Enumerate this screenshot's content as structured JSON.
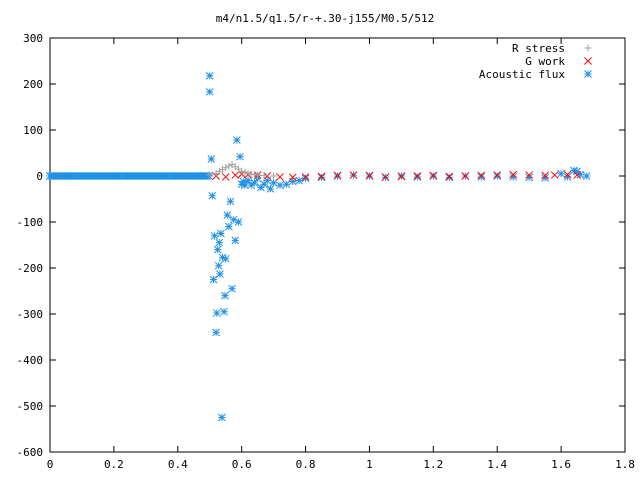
{
  "chart_data": {
    "type": "scatter",
    "title": "m4/n1.5/q1.5/r-+.30-j155/M0.5/512",
    "xlabel": "",
    "ylabel": "",
    "xlim": [
      0,
      1.8
    ],
    "ylim": [
      -600,
      300
    ],
    "xticks": [
      "0",
      "0.2",
      "0.4",
      "0.6",
      "0.8",
      "1",
      "1.2",
      "1.4",
      "1.6",
      "1.8"
    ],
    "yticks": [
      "300",
      "200",
      "100",
      "0",
      "-100",
      "-200",
      "-300",
      "-400",
      "-500",
      "-600"
    ],
    "grid": false,
    "legend_position": "top-right",
    "series": [
      {
        "name": "R stress",
        "marker": "plus",
        "color": "#a0a0a0",
        "points": [
          [
            0.5,
            2
          ],
          [
            0.52,
            5
          ],
          [
            0.53,
            10
          ],
          [
            0.54,
            14
          ],
          [
            0.55,
            18
          ],
          [
            0.56,
            22
          ],
          [
            0.57,
            25
          ],
          [
            0.58,
            20
          ],
          [
            0.59,
            15
          ],
          [
            0.6,
            10
          ],
          [
            0.61,
            8
          ],
          [
            0.62,
            6
          ],
          [
            0.63,
            4
          ],
          [
            0.64,
            3
          ],
          [
            0.65,
            2
          ],
          [
            0.67,
            1
          ],
          [
            0.7,
            0
          ]
        ]
      },
      {
        "name": "G work",
        "marker": "cross",
        "color": "#ff0000",
        "points": [
          [
            0.52,
            0
          ],
          [
            0.55,
            -2
          ],
          [
            0.58,
            2
          ],
          [
            0.6,
            4
          ],
          [
            0.62,
            3
          ],
          [
            0.65,
            2
          ],
          [
            0.68,
            0
          ],
          [
            0.72,
            -2
          ],
          [
            0.76,
            -3
          ],
          [
            0.8,
            -2
          ],
          [
            0.85,
            -1
          ],
          [
            0.9,
            1
          ],
          [
            0.95,
            2
          ],
          [
            1.0,
            1
          ],
          [
            1.05,
            -2
          ],
          [
            1.1,
            -1
          ],
          [
            1.15,
            0
          ],
          [
            1.2,
            1
          ],
          [
            1.25,
            -1
          ],
          [
            1.3,
            0
          ],
          [
            1.35,
            1
          ],
          [
            1.4,
            2
          ],
          [
            1.45,
            3
          ],
          [
            1.5,
            2
          ],
          [
            1.55,
            1
          ],
          [
            1.58,
            2
          ],
          [
            1.62,
            3
          ],
          [
            1.65,
            2
          ]
        ]
      },
      {
        "name": "Acoustic flux",
        "marker": "star",
        "color": "#1e90e8",
        "points": [
          [
            0.0,
            0
          ],
          [
            0.05,
            0
          ],
          [
            0.1,
            0
          ],
          [
            0.15,
            0
          ],
          [
            0.2,
            0
          ],
          [
            0.25,
            0
          ],
          [
            0.3,
            0
          ],
          [
            0.35,
            0
          ],
          [
            0.4,
            0
          ],
          [
            0.45,
            0
          ],
          [
            0.48,
            0
          ],
          [
            0.5,
            218
          ],
          [
            0.5,
            183
          ],
          [
            0.505,
            37
          ],
          [
            0.508,
            -43
          ],
          [
            0.512,
            -225
          ],
          [
            0.515,
            -130
          ],
          [
            0.52,
            -340
          ],
          [
            0.522,
            -298
          ],
          [
            0.525,
            -160
          ],
          [
            0.528,
            -195
          ],
          [
            0.53,
            -145
          ],
          [
            0.532,
            -213
          ],
          [
            0.535,
            -125
          ],
          [
            0.538,
            -525
          ],
          [
            0.54,
            -177
          ],
          [
            0.545,
            -295
          ],
          [
            0.548,
            -260
          ],
          [
            0.55,
            -180
          ],
          [
            0.555,
            -85
          ],
          [
            0.56,
            -110
          ],
          [
            0.565,
            -55
          ],
          [
            0.57,
            -245
          ],
          [
            0.575,
            -95
          ],
          [
            0.58,
            -140
          ],
          [
            0.585,
            78
          ],
          [
            0.59,
            -100
          ],
          [
            0.595,
            42
          ],
          [
            0.6,
            -18
          ],
          [
            0.605,
            -12
          ],
          [
            0.61,
            -20
          ],
          [
            0.62,
            -10
          ],
          [
            0.63,
            -20
          ],
          [
            0.64,
            -15
          ],
          [
            0.65,
            -5
          ],
          [
            0.66,
            -25
          ],
          [
            0.67,
            -18
          ],
          [
            0.68,
            -10
          ],
          [
            0.69,
            -28
          ],
          [
            0.7,
            -15
          ],
          [
            0.72,
            -20
          ],
          [
            0.74,
            -18
          ],
          [
            0.76,
            -12
          ],
          [
            0.78,
            -10
          ],
          [
            0.8,
            -5
          ],
          [
            0.85,
            -3
          ],
          [
            0.9,
            0
          ],
          [
            0.95,
            2
          ],
          [
            1.0,
            0
          ],
          [
            1.05,
            -3
          ],
          [
            1.1,
            0
          ],
          [
            1.15,
            -2
          ],
          [
            1.2,
            0
          ],
          [
            1.25,
            -3
          ],
          [
            1.3,
            0
          ],
          [
            1.35,
            -2
          ],
          [
            1.4,
            0
          ],
          [
            1.45,
            -2
          ],
          [
            1.5,
            -3
          ],
          [
            1.55,
            -4
          ],
          [
            1.6,
            5
          ],
          [
            1.62,
            -2
          ],
          [
            1.64,
            12
          ],
          [
            1.65,
            10
          ],
          [
            1.66,
            3
          ],
          [
            1.68,
            0
          ]
        ]
      }
    ]
  }
}
